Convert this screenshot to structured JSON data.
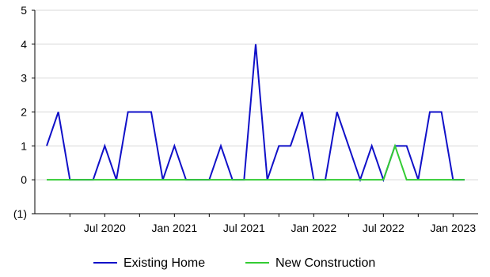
{
  "chart_data": {
    "type": "line",
    "x": [
      "2020-02",
      "2020-03",
      "2020-04",
      "2020-05",
      "2020-06",
      "2020-07",
      "2020-08",
      "2020-09",
      "2020-10",
      "2020-11",
      "2020-12",
      "2021-01",
      "2021-02",
      "2021-03",
      "2021-04",
      "2021-05",
      "2021-06",
      "2021-07",
      "2021-08",
      "2021-09",
      "2021-10",
      "2021-11",
      "2021-12",
      "2022-01",
      "2022-02",
      "2022-03",
      "2022-04",
      "2022-05",
      "2022-06",
      "2022-07",
      "2022-08",
      "2022-09",
      "2022-10",
      "2022-11",
      "2022-12",
      "2023-01",
      "2023-02"
    ],
    "x_tick_labels": [
      "Jul 2020",
      "Jan 2021",
      "Jul 2021",
      "Jan 2022",
      "Jul 2022",
      "Jan 2023"
    ],
    "y_tick_labels": [
      "5",
      "4",
      "3",
      "2",
      "1",
      "0",
      "(1)"
    ],
    "ylim": [
      -1,
      5
    ],
    "grid": true,
    "legend_position": "bottom",
    "series": [
      {
        "name": "Existing Home",
        "color": "#1010c8",
        "values": [
          1,
          2,
          0,
          0,
          0,
          1,
          0,
          2,
          2,
          2,
          0,
          1,
          0,
          0,
          0,
          1,
          0,
          0,
          4,
          0,
          1,
          1,
          2,
          0,
          0,
          2,
          1,
          0,
          1,
          0,
          1,
          1,
          0,
          2,
          2,
          0,
          0
        ]
      },
      {
        "name": "New Construction",
        "color": "#33cc33",
        "values": [
          0,
          0,
          0,
          0,
          0,
          0,
          0,
          0,
          0,
          0,
          0,
          0,
          0,
          0,
          0,
          0,
          0,
          0,
          0,
          0,
          0,
          0,
          0,
          0,
          0,
          0,
          0,
          0,
          0,
          0,
          1,
          0,
          0,
          0,
          0,
          0,
          0
        ]
      }
    ]
  }
}
